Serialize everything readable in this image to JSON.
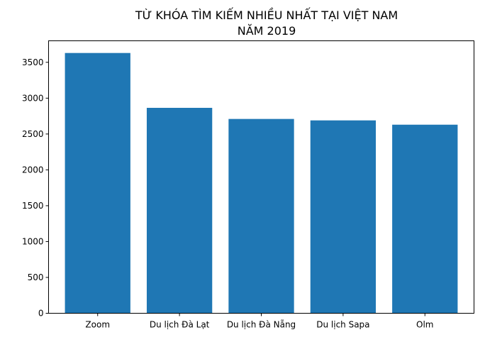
{
  "chart_data": {
    "type": "bar",
    "title_line1": "TỪ KHÓA TÌM KIẾM NHIỀU NHẤT TẠI VIỆT NAM",
    "title_line2": "NĂM 2019",
    "categories": [
      "Zoom",
      "Du lịch Đà Lạt",
      "Du lịch Đà Nẵng",
      "Du lịch Sapa",
      "Olm"
    ],
    "values": [
      3630,
      2865,
      2710,
      2690,
      2630
    ],
    "xlabel": "",
    "ylabel": "",
    "ylim": [
      0,
      3800
    ],
    "yticks": [
      0,
      500,
      1000,
      1500,
      2000,
      2500,
      3000,
      3500
    ],
    "grid": false,
    "bar_color": "#1f77b4"
  }
}
